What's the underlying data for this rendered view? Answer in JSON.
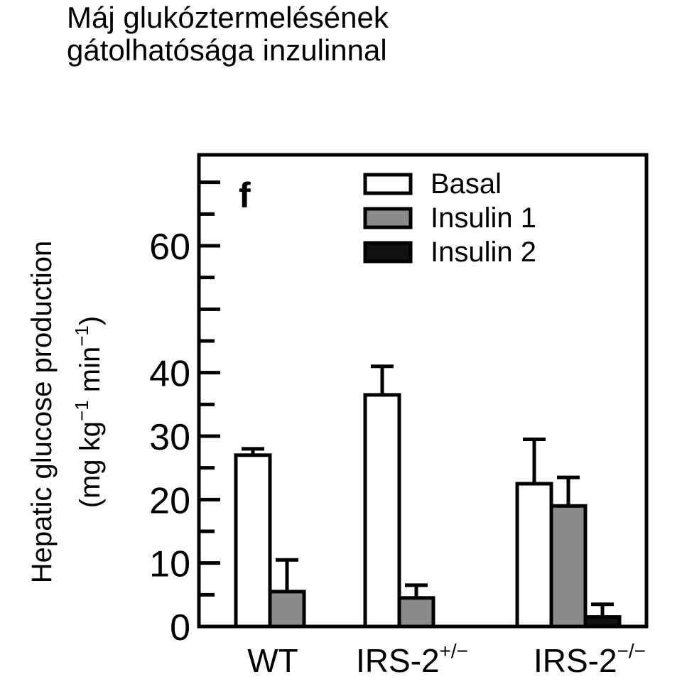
{
  "slide": {
    "title_line1": "Máj glukóztermelésének",
    "title_line2": "gátolhatósága inzulinnal"
  },
  "chart_data": {
    "type": "bar",
    "panel_label": "f",
    "ylabel_line1": "Hepatic glucose production",
    "ylabel_line2_prefix": "(mg kg",
    "ylabel_line2_sup1": "−1",
    "ylabel_line2_mid": " min",
    "ylabel_line2_sup2": "−1",
    "ylabel_line2_suffix": ")",
    "ylim": [
      0,
      75
    ],
    "yticks": [
      0,
      10,
      20,
      30,
      40,
      60
    ],
    "categories": [
      {
        "base": "WT",
        "sup": ""
      },
      {
        "base": "IRS-2",
        "sup": "+/−"
      },
      {
        "base": "IRS-2",
        "sup": "−/−"
      }
    ],
    "series": [
      {
        "name": "Basal",
        "color": "#ffffff",
        "values": [
          27,
          36.5,
          22.5
        ],
        "errors": [
          1,
          4.5,
          7
        ]
      },
      {
        "name": "Insulin 1",
        "color": "#8a8a8a",
        "values": [
          5.5,
          4.5,
          19
        ],
        "errors": [
          5,
          2,
          4.5
        ]
      },
      {
        "name": "Insulin 2",
        "color": "#111111",
        "values": [
          null,
          null,
          1.5
        ],
        "errors": [
          null,
          null,
          2
        ]
      }
    ],
    "legend_position": "top-right",
    "grid": false
  }
}
